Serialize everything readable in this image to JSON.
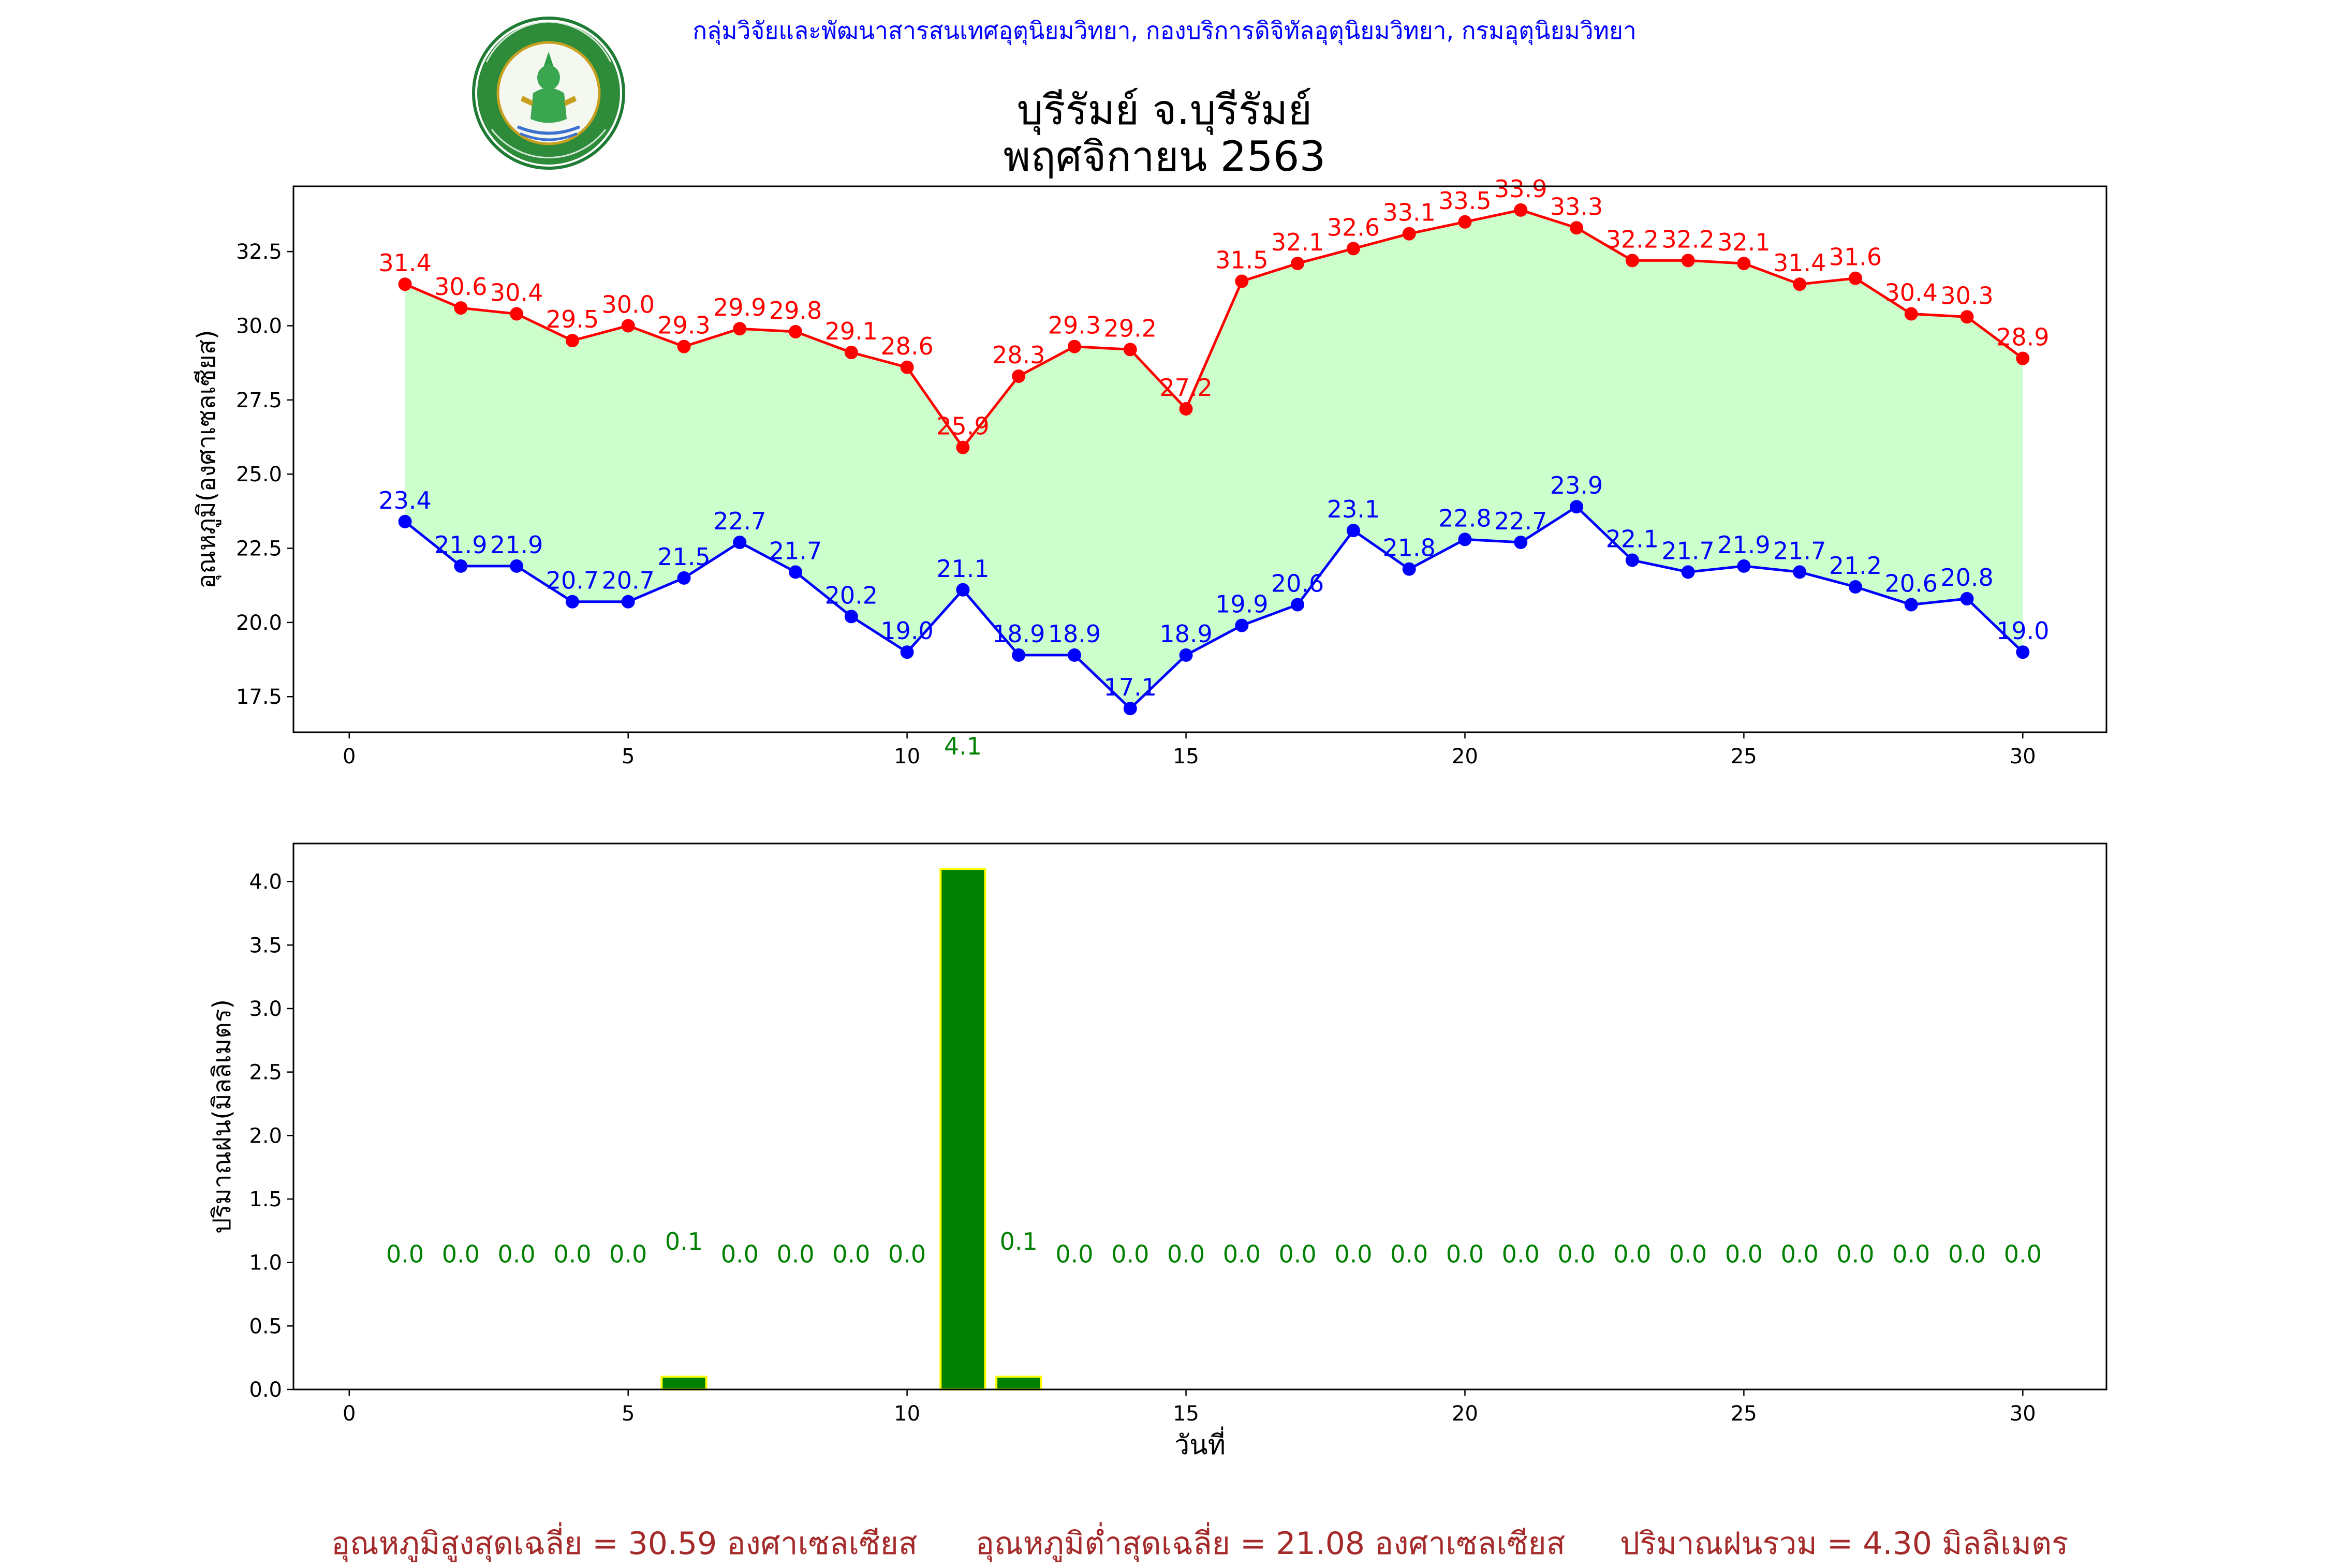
{
  "header": {
    "org_line": "กลุ่มวิจัยและพัฒนาสารสนเทศอุตุนิยมวิทยา, กองบริการดิจิทัลอุตุนิยมวิทยา, กรมอุตุนิยมวิทยา",
    "title_line1": "บุรีรัมย์ จ.บุรีรัมย์",
    "title_line2": "พฤศจิกายน 2563",
    "logo_icon": "meteorological-department-seal-icon"
  },
  "chart_data": [
    {
      "type": "line",
      "ylabel": "อุณหภูมิ(องศาเซลเซียส)",
      "xlabel": "",
      "xlim": [
        -1,
        31.5
      ],
      "ylim": [
        16.3,
        34.7
      ],
      "xticks": [
        0,
        5,
        10,
        15,
        20,
        25,
        30
      ],
      "yticks": [
        17.5,
        20.0,
        22.5,
        25.0,
        27.5,
        30.0,
        32.5
      ],
      "x": [
        1,
        2,
        3,
        4,
        5,
        6,
        7,
        8,
        9,
        10,
        11,
        12,
        13,
        14,
        15,
        16,
        17,
        18,
        19,
        20,
        21,
        22,
        23,
        24,
        25,
        26,
        27,
        28,
        29,
        30
      ],
      "series": [
        {
          "key": "max",
          "values": [
            31.4,
            30.6,
            30.4,
            29.5,
            30.0,
            29.3,
            29.9,
            29.8,
            29.1,
            28.6,
            25.9,
            28.3,
            29.3,
            29.2,
            27.2,
            31.5,
            32.1,
            32.6,
            33.1,
            33.5,
            33.9,
            33.3,
            32.2,
            32.2,
            32.1,
            31.4,
            31.6,
            30.4,
            30.3,
            28.9
          ],
          "color": "#ff0000"
        },
        {
          "key": "min",
          "values": [
            23.4,
            21.9,
            21.9,
            20.7,
            20.7,
            21.5,
            22.7,
            21.7,
            20.2,
            19.0,
            21.1,
            18.9,
            18.9,
            17.1,
            18.9,
            19.9,
            20.6,
            23.1,
            21.8,
            22.8,
            22.7,
            23.9,
            22.1,
            21.7,
            21.9,
            21.7,
            21.2,
            20.6,
            20.8,
            19.0
          ],
          "color": "#0000ff"
        }
      ],
      "fill_color": "#ccffcc",
      "annotation": {
        "text": "4.1",
        "x": 11,
        "color": "#008000"
      },
      "grid": false
    },
    {
      "type": "bar",
      "ylabel": "ปริมาณฝน(มิลลิเมตร)",
      "xlabel": "วันที่",
      "xlim": [
        -1,
        31.5
      ],
      "ylim": [
        0,
        4.3
      ],
      "xticks": [
        0,
        5,
        10,
        15,
        20,
        25,
        30
      ],
      "yticks": [
        0.0,
        0.5,
        1.0,
        1.5,
        2.0,
        2.5,
        3.0,
        3.5,
        4.0
      ],
      "x": [
        1,
        2,
        3,
        4,
        5,
        6,
        7,
        8,
        9,
        10,
        11,
        12,
        13,
        14,
        15,
        16,
        17,
        18,
        19,
        20,
        21,
        22,
        23,
        24,
        25,
        26,
        27,
        28,
        29,
        30
      ],
      "values": [
        0.0,
        0.0,
        0.0,
        0.0,
        0.0,
        0.1,
        0.0,
        0.0,
        0.0,
        0.0,
        4.1,
        0.1,
        0.0,
        0.0,
        0.0,
        0.0,
        0.0,
        0.0,
        0.0,
        0.0,
        0.0,
        0.0,
        0.0,
        0.0,
        0.0,
        0.0,
        0.0,
        0.0,
        0.0,
        0.0
      ],
      "label_y": 1.0,
      "bar_color": "#008000",
      "edge_color": "#ffff00",
      "grid": false
    }
  ],
  "footer": {
    "avg_max": "อุณหภูมิสูงสุดเฉลี่ย = 30.59 องศาเซลเซียส",
    "avg_min": "อุณหภูมิต่ำสุดเฉลี่ย = 21.08 องศาเซลเซียส",
    "total_rain": "ปริมาณฝนรวม = 4.30 มิลลิเมตร"
  }
}
